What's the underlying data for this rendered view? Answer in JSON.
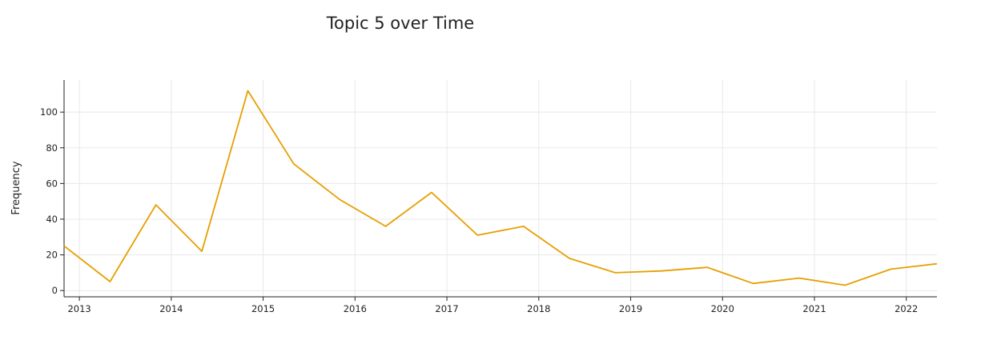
{
  "chart_data": {
    "type": "line",
    "title": "Topic 5 over Time",
    "xlabel": "",
    "ylabel": "Frequency",
    "x": [
      "2012-11",
      "2013-05",
      "2013-11",
      "2014-05",
      "2014-11",
      "2015-05",
      "2015-11",
      "2016-05",
      "2016-11",
      "2017-05",
      "2017-11",
      "2018-05",
      "2018-11",
      "2019-05",
      "2019-11",
      "2020-05",
      "2020-11",
      "2021-05",
      "2021-11",
      "2022-05"
    ],
    "series": [
      {
        "color": "#e69f00",
        "values": [
          25,
          5,
          48,
          22,
          112,
          71,
          51,
          36,
          55,
          31,
          36,
          18,
          10,
          11,
          13,
          4,
          7,
          3,
          12,
          15
        ]
      }
    ],
    "x_ticks": [
      "2013",
      "2014",
      "2015",
      "2016",
      "2017",
      "2018",
      "2019",
      "2020",
      "2021",
      "2022"
    ],
    "y_ticks": [
      0,
      20,
      40,
      60,
      80,
      100
    ],
    "ylim": [
      -3.5,
      118
    ],
    "xlim": [
      "2012-11",
      "2022-05"
    ],
    "grid": true,
    "legend": "none"
  }
}
